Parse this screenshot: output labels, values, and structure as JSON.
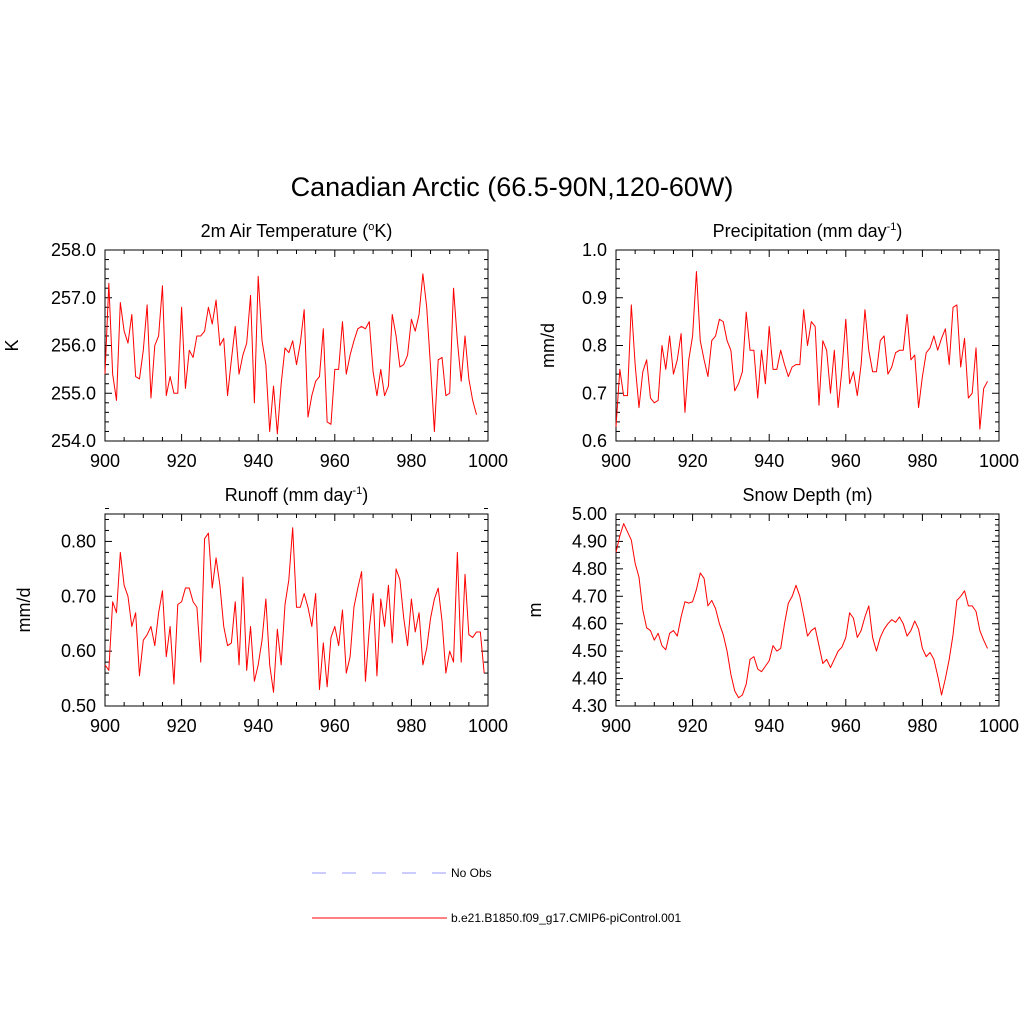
{
  "figure": {
    "title": "Canadian Arctic (66.5-90N,120-60W)",
    "colors": {
      "model": "#ff0000",
      "obs": "#9999ff",
      "axis": "#000000"
    },
    "legend": [
      {
        "label": "No Obs",
        "style": "dashed",
        "color": "#9999ff"
      },
      {
        "label": "b.e21.B1850.f09_g17.CMIP6-piControl.001",
        "style": "solid",
        "color": "#ff0000"
      }
    ]
  },
  "chart_data": [
    {
      "type": "line",
      "title": "2m Air Temperature (",
      "title_sup": "o",
      "title_tail": "K)",
      "ylabel": "K",
      "xlabel": "",
      "xlim": [
        900,
        1000
      ],
      "xticks": [
        900,
        920,
        940,
        960,
        980,
        1000
      ],
      "xtick_labels": [
        "900",
        "920",
        "940",
        "960",
        "980",
        "1000"
      ],
      "ylim": [
        254.0,
        258.0
      ],
      "yticks": [
        254.0,
        255.0,
        256.0,
        257.0,
        258.0
      ],
      "ytick_labels": [
        "254.0",
        "255.0",
        "256.0",
        "257.0",
        "258.0"
      ],
      "x_start": 900,
      "series": [
        {
          "name": "b.e21.B1850.f09_g17.CMIP6-piControl.001",
          "values": [
            255.4,
            257.3,
            255.4,
            254.85,
            256.9,
            256.3,
            256.05,
            256.65,
            255.35,
            255.3,
            255.9,
            256.85,
            254.9,
            256.0,
            256.2,
            257.25,
            254.95,
            255.35,
            255.0,
            255.0,
            256.8,
            255.1,
            255.9,
            255.75,
            256.2,
            256.2,
            256.3,
            256.8,
            256.45,
            256.95,
            256.0,
            256.15,
            254.95,
            255.7,
            256.4,
            255.4,
            255.8,
            256.05,
            257.05,
            254.8,
            257.45,
            256.1,
            255.6,
            254.2,
            255.15,
            254.15,
            255.2,
            255.95,
            255.85,
            256.1,
            255.6,
            256.05,
            256.75,
            254.5,
            254.95,
            255.25,
            255.35,
            256.35,
            254.4,
            254.35,
            255.5,
            255.5,
            256.5,
            255.4,
            255.8,
            256.1,
            256.35,
            256.4,
            256.35,
            256.5,
            255.45,
            254.95,
            255.5,
            254.95,
            255.15,
            256.65,
            256.2,
            255.55,
            255.6,
            255.8,
            256.55,
            256.3,
            256.65,
            257.5,
            256.8,
            255.55,
            254.2,
            255.7,
            255.75,
            254.95,
            255.0,
            257.2,
            256.1,
            255.25,
            256.2,
            255.3,
            254.85,
            254.55
          ]
        }
      ]
    },
    {
      "type": "line",
      "title": "Precipitation (mm day",
      "title_sup": "-1",
      "title_tail": ")",
      "ylabel": "mm/d",
      "xlabel": "",
      "xlim": [
        900,
        1000
      ],
      "xticks": [
        900,
        920,
        940,
        960,
        980,
        1000
      ],
      "xtick_labels": [
        "900",
        "920",
        "940",
        "960",
        "980",
        "1000"
      ],
      "ylim": [
        0.6,
        1.0
      ],
      "yticks": [
        0.6,
        0.7,
        0.8,
        0.9,
        1.0
      ],
      "ytick_labels": [
        "0.6",
        "0.7",
        "0.8",
        "0.9",
        "1.0"
      ],
      "x_start": 900,
      "series": [
        {
          "name": "b.e21.B1850.f09_g17.CMIP6-piControl.001",
          "values": [
            0.63,
            0.75,
            0.695,
            0.695,
            0.885,
            0.76,
            0.67,
            0.745,
            0.77,
            0.69,
            0.68,
            0.685,
            0.8,
            0.75,
            0.82,
            0.74,
            0.77,
            0.825,
            0.66,
            0.77,
            0.82,
            0.955,
            0.81,
            0.77,
            0.735,
            0.81,
            0.82,
            0.855,
            0.85,
            0.81,
            0.79,
            0.705,
            0.72,
            0.745,
            0.87,
            0.79,
            0.79,
            0.69,
            0.79,
            0.72,
            0.84,
            0.75,
            0.75,
            0.79,
            0.76,
            0.735,
            0.755,
            0.76,
            0.76,
            0.875,
            0.8,
            0.85,
            0.84,
            0.675,
            0.81,
            0.79,
            0.7,
            0.79,
            0.67,
            0.75,
            0.855,
            0.72,
            0.745,
            0.695,
            0.76,
            0.875,
            0.79,
            0.745,
            0.745,
            0.81,
            0.82,
            0.74,
            0.755,
            0.785,
            0.79,
            0.79,
            0.865,
            0.77,
            0.78,
            0.67,
            0.735,
            0.785,
            0.795,
            0.82,
            0.79,
            0.815,
            0.835,
            0.76,
            0.88,
            0.885,
            0.755,
            0.815,
            0.69,
            0.7,
            0.795,
            0.625,
            0.71,
            0.725
          ]
        }
      ]
    },
    {
      "type": "line",
      "title": "Runoff (mm day",
      "title_sup": "-1",
      "title_tail": ")",
      "ylabel": "mm/d",
      "xlabel": "",
      "xlim": [
        900,
        1000
      ],
      "xticks": [
        900,
        920,
        940,
        960,
        980,
        1000
      ],
      "xtick_labels": [
        "900",
        "920",
        "940",
        "960",
        "980",
        "1000"
      ],
      "ylim": [
        0.5,
        0.85
      ],
      "yticks": [
        0.5,
        0.6,
        0.7,
        0.8
      ],
      "ytick_labels": [
        "0.50",
        "0.60",
        "0.70",
        "0.80"
      ],
      "x_start": 900,
      "series": [
        {
          "name": "b.e21.B1850.f09_g17.CMIP6-piControl.001",
          "values": [
            0.575,
            0.565,
            0.69,
            0.67,
            0.78,
            0.72,
            0.7,
            0.645,
            0.67,
            0.555,
            0.62,
            0.63,
            0.645,
            0.61,
            0.67,
            0.71,
            0.59,
            0.645,
            0.54,
            0.685,
            0.69,
            0.715,
            0.715,
            0.69,
            0.68,
            0.58,
            0.805,
            0.815,
            0.715,
            0.77,
            0.72,
            0.645,
            0.61,
            0.615,
            0.69,
            0.575,
            0.735,
            0.565,
            0.645,
            0.545,
            0.575,
            0.62,
            0.695,
            0.575,
            0.525,
            0.64,
            0.575,
            0.685,
            0.73,
            0.825,
            0.68,
            0.68,
            0.705,
            0.68,
            0.645,
            0.705,
            0.53,
            0.615,
            0.535,
            0.625,
            0.645,
            0.61,
            0.675,
            0.56,
            0.59,
            0.68,
            0.715,
            0.745,
            0.545,
            0.64,
            0.705,
            0.555,
            0.695,
            0.645,
            0.72,
            0.615,
            0.75,
            0.73,
            0.66,
            0.61,
            0.695,
            0.635,
            0.67,
            0.575,
            0.605,
            0.66,
            0.695,
            0.715,
            0.655,
            0.56,
            0.6,
            0.58,
            0.78,
            0.58,
            0.74,
            0.63,
            0.625,
            0.635,
            0.635,
            0.56
          ]
        }
      ]
    },
    {
      "type": "line",
      "title": "Snow Depth (m)",
      "title_sup": "",
      "title_tail": "",
      "ylabel": "m",
      "xlabel": "",
      "xlim": [
        900,
        1000
      ],
      "xticks": [
        900,
        920,
        940,
        960,
        980,
        1000
      ],
      "xtick_labels": [
        "900",
        "920",
        "940",
        "960",
        "980",
        "1000"
      ],
      "ylim": [
        4.3,
        5.0
      ],
      "yticks": [
        4.3,
        4.4,
        4.5,
        4.6,
        4.7,
        4.8,
        4.9,
        5.0
      ],
      "ytick_labels": [
        "4.30",
        "4.40",
        "4.50",
        "4.60",
        "4.70",
        "4.80",
        "4.90",
        "5.00"
      ],
      "x_start": 900,
      "series": [
        {
          "name": "b.e21.B1850.f09_g17.CMIP6-piControl.001",
          "values": [
            4.86,
            4.92,
            4.965,
            4.935,
            4.905,
            4.82,
            4.77,
            4.65,
            4.585,
            4.575,
            4.54,
            4.565,
            4.52,
            4.505,
            4.565,
            4.575,
            4.555,
            4.625,
            4.68,
            4.675,
            4.68,
            4.725,
            4.785,
            4.765,
            4.665,
            4.685,
            4.655,
            4.6,
            4.56,
            4.5,
            4.415,
            4.355,
            4.33,
            4.34,
            4.38,
            4.47,
            4.48,
            4.435,
            4.425,
            4.445,
            4.465,
            4.52,
            4.5,
            4.51,
            4.6,
            4.675,
            4.7,
            4.74,
            4.7,
            4.63,
            4.555,
            4.575,
            4.585,
            4.52,
            4.455,
            4.47,
            4.44,
            4.47,
            4.5,
            4.515,
            4.55,
            4.64,
            4.62,
            4.55,
            4.575,
            4.625,
            4.665,
            4.55,
            4.5,
            4.55,
            4.58,
            4.6,
            4.615,
            4.605,
            4.625,
            4.6,
            4.555,
            4.575,
            4.61,
            4.58,
            4.51,
            4.48,
            4.495,
            4.47,
            4.41,
            4.34,
            4.4,
            4.47,
            4.56,
            4.685,
            4.7,
            4.72,
            4.665,
            4.665,
            4.645,
            4.575,
            4.54,
            4.51
          ]
        }
      ]
    }
  ]
}
